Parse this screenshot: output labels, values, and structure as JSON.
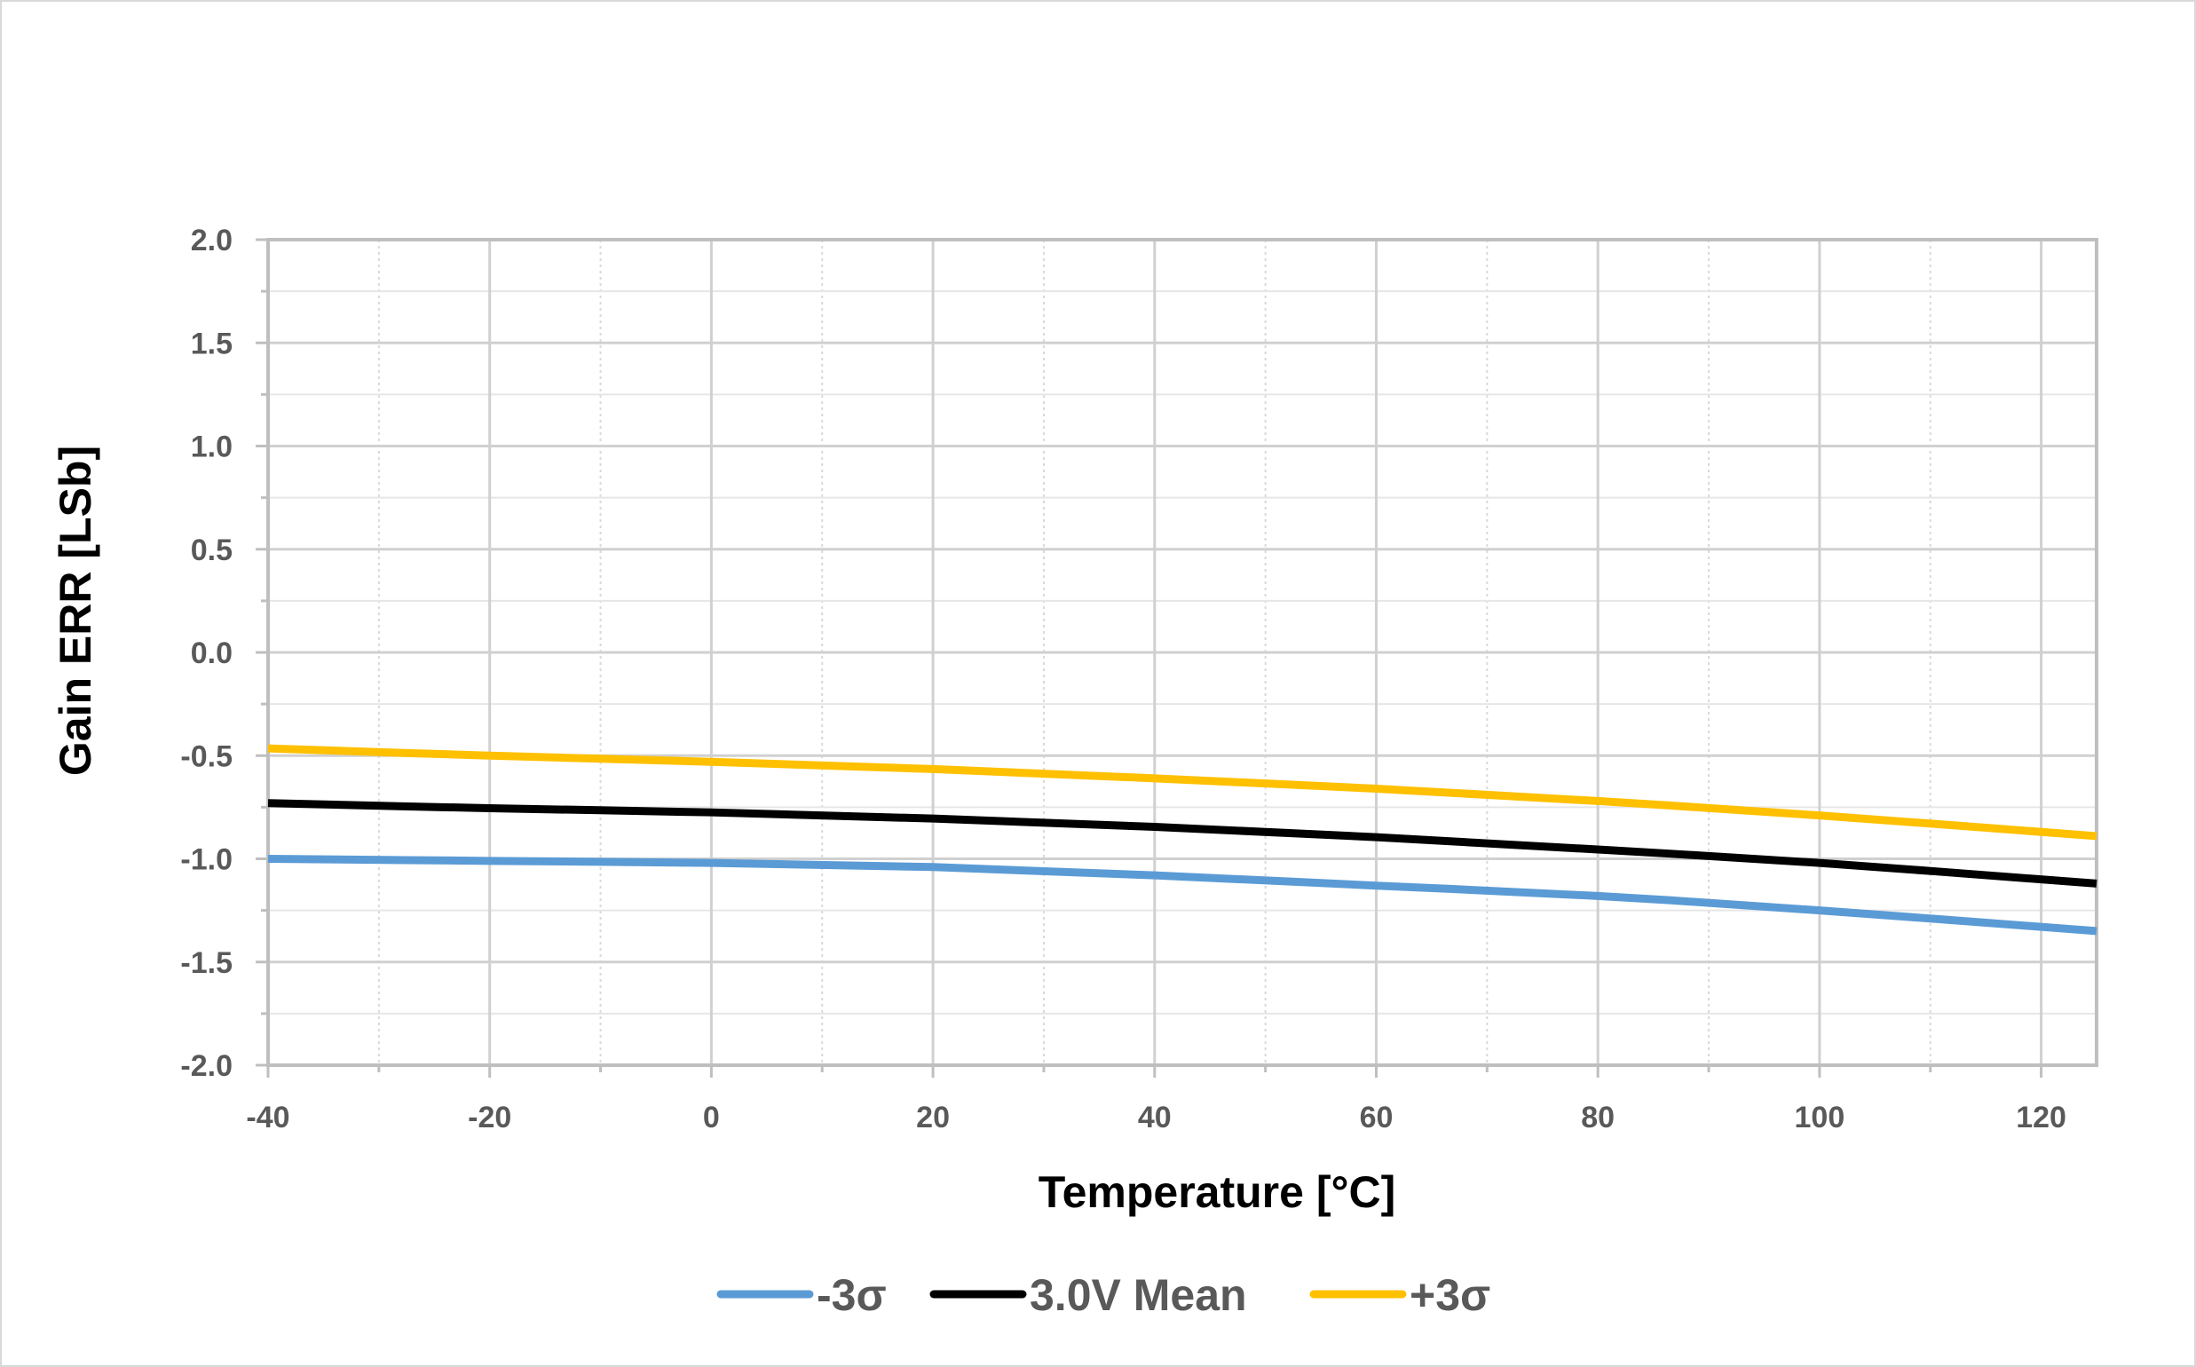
{
  "chart_data": {
    "type": "line",
    "title": "",
    "xlabel": "Temperature [°C]",
    "ylabel": "Gain ERR [LSb]",
    "xlim": [
      -40,
      125
    ],
    "ylim": [
      -2.0,
      2.0
    ],
    "x_ticks": [
      "-40",
      "-20",
      "0",
      "20",
      "40",
      "60",
      "80",
      "100",
      "120"
    ],
    "y_ticks": [
      "2.0",
      "1.5",
      "1.0",
      "0.5",
      "0.0",
      "-0.5",
      "-1.0",
      "-1.5",
      "-2.0"
    ],
    "x_major_step": 20,
    "x_minor_step": 10,
    "y_major_step": 0.5,
    "y_minor_step": 0.25,
    "grid": true,
    "legend_position": "bottom",
    "series": [
      {
        "name": "-3σ",
        "color": "#5b9bd5",
        "x": [
          -40,
          -20,
          0,
          20,
          40,
          60,
          80,
          100,
          125
        ],
        "y": [
          -1.0,
          -1.01,
          -1.02,
          -1.04,
          -1.08,
          -1.13,
          -1.18,
          -1.25,
          -1.35
        ]
      },
      {
        "name": "3.0V Mean",
        "color": "#000000",
        "x": [
          -40,
          -20,
          0,
          20,
          40,
          60,
          80,
          100,
          125
        ],
        "y": [
          -0.73,
          -0.755,
          -0.775,
          -0.805,
          -0.845,
          -0.895,
          -0.955,
          -1.02,
          -1.12
        ]
      },
      {
        "name": "+3σ",
        "color": "#ffc000",
        "x": [
          -40,
          -20,
          0,
          20,
          40,
          60,
          80,
          100,
          125
        ],
        "y": [
          -0.465,
          -0.5,
          -0.53,
          -0.565,
          -0.61,
          -0.66,
          -0.72,
          -0.79,
          -0.89
        ]
      }
    ]
  }
}
